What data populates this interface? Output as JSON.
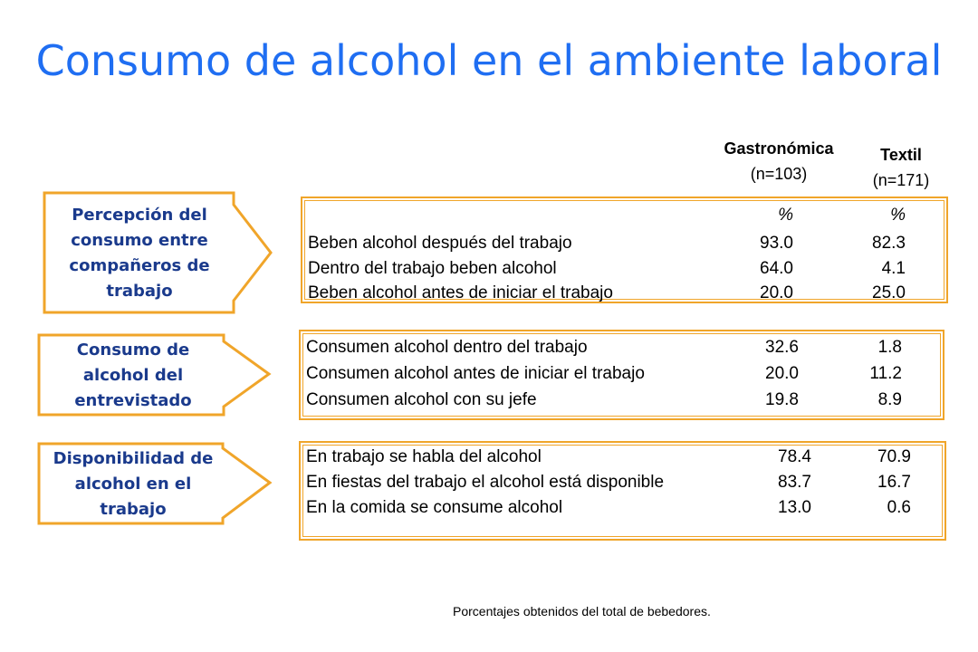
{
  "title": "Consumo de alcohol en el ambiente laboral",
  "columns": [
    {
      "name": "Gastronómica",
      "n": "(n=103)"
    },
    {
      "name": "Textil",
      "n": "(n=171)"
    }
  ],
  "sections": [
    {
      "label": "Percepción del consumo entre compañeros de trabajo",
      "header": {
        "col1": "%",
        "col2": "%"
      },
      "rows": [
        {
          "label": "Beben alcohol después del trabajo",
          "v1": "93.0",
          "v2": "82.3"
        },
        {
          "label": "Dentro del trabajo beben alcohol",
          "v1": "64.0",
          "v2": "4.1"
        },
        {
          "label": "Beben alcohol antes de iniciar el trabajo",
          "v1": "20.0",
          "v2": "25.0"
        }
      ]
    },
    {
      "label": "Consumo de alcohol del entrevistado",
      "rows": [
        {
          "label": "Consumen alcohol dentro del trabajo",
          "v1": "32.6",
          "v2": "1.8"
        },
        {
          "label": "Consumen alcohol antes de iniciar el trabajo",
          "v1": "20.0",
          "v2": "11.2"
        },
        {
          "label": "Consumen alcohol con su jefe",
          "v1": "19.8",
          "v2": "8.9"
        }
      ]
    },
    {
      "label": "Disponibilidad de alcohol en el trabajo",
      "rows": [
        {
          "label": "En trabajo se habla del alcohol",
          "v1": "78.4",
          "v2": "70.9"
        },
        {
          "label": "En fiestas del trabajo el alcohol está disponible",
          "v1": "83.7",
          "v2": "16.7"
        },
        {
          "label": "En la comida se consume alcohol",
          "v1": "13.0",
          "v2": "0.6"
        }
      ]
    }
  ],
  "footnote": "Porcentajes obtenidos del total de bebedores.",
  "colors": {
    "title": "#1f6ef2",
    "accent": "#f0a52a",
    "label": "#1a3a8c"
  }
}
